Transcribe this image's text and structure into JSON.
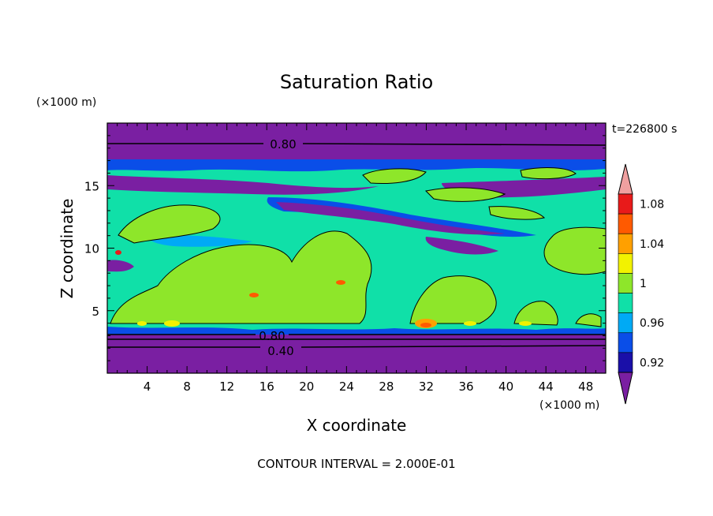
{
  "chart_data": {
    "type": "heatmap",
    "title": "Saturation Ratio",
    "xlabel": "X coordinate",
    "ylabel": "Z coordinate",
    "x_unit": "(×1000 m)",
    "y_unit": "(×1000 m)",
    "time_label": "t=226800 s",
    "footer": "CONTOUR INTERVAL = 2.000E-01",
    "xlim": [
      0,
      50
    ],
    "ylim": [
      0,
      20
    ],
    "x_ticks": [
      "4",
      "8",
      "12",
      "16",
      "20",
      "24",
      "28",
      "32",
      "36",
      "40",
      "44",
      "48"
    ],
    "y_ticks": [
      "5",
      "10",
      "15"
    ],
    "colorbar_labels": [
      "0.92",
      "0.96",
      "1",
      "1.04",
      "1.08"
    ],
    "contour_labels": [
      "0.80",
      "0.80",
      "0.40"
    ],
    "colors": {
      "level_0.90": "#7a1fa2",
      "level_0.92": "#1a0fa8",
      "level_0.94": "#0a4ee8",
      "level_0.96": "#00aaf5",
      "level_0.98": "#10e0a8",
      "level_1.00": "#8ee62a",
      "level_1.02": "#f2f200",
      "level_1.04": "#ffa000",
      "level_1.06": "#ff5a00",
      "level_1.08": "#e81a1a",
      "level_1.10": "#f0a0a0"
    }
  }
}
